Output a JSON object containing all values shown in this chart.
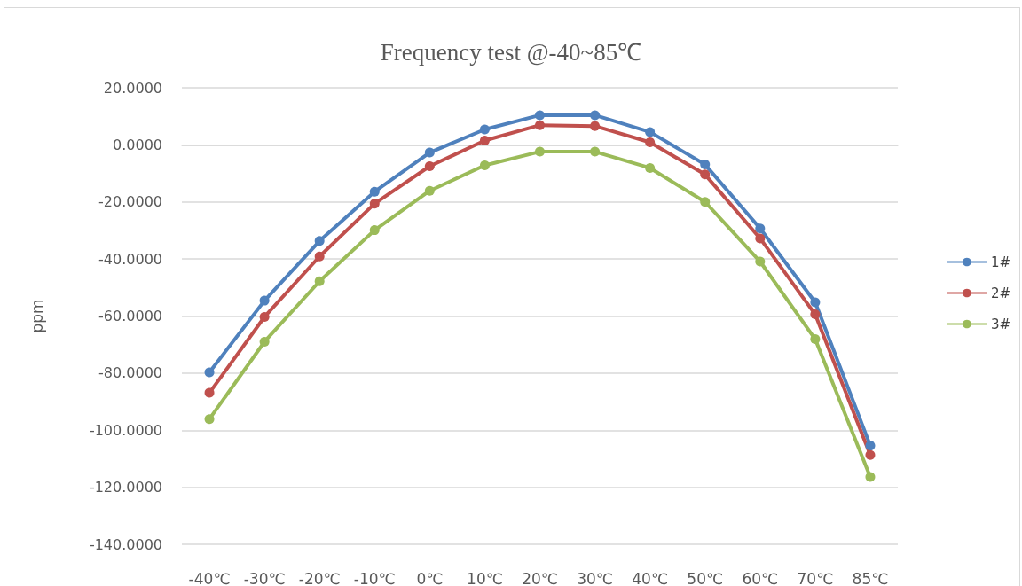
{
  "chart_data": {
    "type": "line",
    "title": "Frequency test @-40~85℃",
    "ylabel": "ppm",
    "categories": [
      "-40℃",
      "-30℃",
      "-20℃",
      "-10℃",
      "0℃",
      "10℃",
      "20℃",
      "30℃",
      "40℃",
      "50℃",
      "60℃",
      "70℃",
      "85℃"
    ],
    "series": [
      {
        "name": "1#",
        "color": "#4f81bd",
        "values": [
          -79.7,
          -54.6,
          -33.7,
          -16.4,
          -2.7,
          5.4,
          10.4,
          10.4,
          4.5,
          -6.9,
          -29.3,
          -55.2,
          -105.4
        ]
      },
      {
        "name": "2#",
        "color": "#c0504d",
        "values": [
          -86.9,
          -60.3,
          -39.1,
          -20.6,
          -7.5,
          1.5,
          6.9,
          6.6,
          0.9,
          -10.4,
          -32.8,
          -59.4,
          -108.7
        ]
      },
      {
        "name": "3#",
        "color": "#9bbb59",
        "values": [
          -96.1,
          -69.0,
          -47.8,
          -29.9,
          -16.1,
          -7.2,
          -2.4,
          -2.4,
          -8.1,
          -20.0,
          -40.9,
          -68.1,
          -116.4
        ]
      }
    ],
    "ylim": [
      -140,
      20
    ],
    "yticks": [
      {
        "value": -140,
        "label": "-140.0000"
      },
      {
        "value": -120,
        "label": "-120.0000"
      },
      {
        "value": -100,
        "label": "-100.0000"
      },
      {
        "value": -80,
        "label": "-80.0000"
      },
      {
        "value": -60,
        "label": "-60.0000"
      },
      {
        "value": -40,
        "label": "-40.0000"
      },
      {
        "value": -20,
        "label": "-20.0000"
      },
      {
        "value": 0,
        "label": "0.0000"
      },
      {
        "value": 20,
        "label": "20.0000"
      }
    ],
    "grid": "y",
    "legend": "right",
    "marker": "circle",
    "line_style": "solid"
  }
}
